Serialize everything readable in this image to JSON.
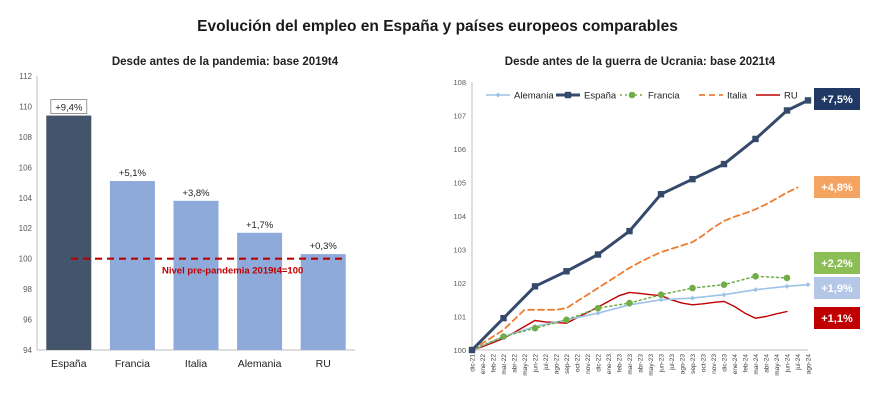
{
  "title": "Evolución del empleo en España y países europeos comparables",
  "colors": {
    "espana": "#44546a",
    "espana_line": "#354a6b",
    "others_bar": "#8eaadb",
    "alemania": "#9dc3e6",
    "francia": "#70ad47",
    "italia": "#ed7d31",
    "ru": "#c00000",
    "refline": "#c00000",
    "grid": "#d9d9d9",
    "axis": "#bfbfbf"
  },
  "chart_data": [
    {
      "type": "bar",
      "title": "Desde antes de la pandemia: base 2019t4",
      "categories": [
        "España",
        "Francia",
        "Italia",
        "Alemania",
        "RU"
      ],
      "values": [
        109.4,
        105.1,
        103.8,
        101.7,
        100.3
      ],
      "data_labels": [
        "+9,4%",
        "+5,1%",
        "+3,8%",
        "+1,7%",
        "+0,3%"
      ],
      "ylim": [
        94,
        112
      ],
      "yticks": [
        94,
        96,
        98,
        100,
        102,
        104,
        106,
        108,
        110,
        112
      ],
      "reference_line": {
        "value": 100,
        "label": "Nivel pre-pandemia 2019t4=100"
      },
      "grid": false
    },
    {
      "type": "line",
      "title": "Desde antes de la guerra de Ucrania: base 2021t4",
      "x": [
        "dic-21",
        "ene-22",
        "feb-22",
        "mar-22",
        "abr-22",
        "may-22",
        "jun-22",
        "jul-22",
        "ago-22",
        "sep-22",
        "oct-22",
        "nov-22",
        "dic-22",
        "ene-23",
        "feb-23",
        "mar-23",
        "abr-23",
        "may-23",
        "jun-23",
        "jul-23",
        "ago-23",
        "sep-23",
        "oct-23",
        "nov-23",
        "dic-23",
        "ene-24",
        "feb-24",
        "mar-24",
        "abr-24",
        "may-24",
        "jun-24",
        "jul-24",
        "ago-24"
      ],
      "ylim": [
        100,
        108
      ],
      "yticks": [
        100,
        101,
        102,
        103,
        104,
        105,
        106,
        107,
        108
      ],
      "legend": "top",
      "grid": false,
      "series": [
        {
          "name": "Alemania",
          "key": "alemania",
          "x": [
            "dic-21",
            "mar-22",
            "jun-22",
            "sep-22",
            "dic-22",
            "mar-23",
            "jun-23",
            "sep-23",
            "dic-23",
            "mar-24",
            "jun-24",
            "ago-24"
          ],
          "values": [
            100.0,
            100.4,
            100.7,
            100.9,
            101.1,
            101.35,
            101.5,
            101.55,
            101.65,
            101.8,
            101.9,
            101.95
          ],
          "end_label": "+1,9%"
        },
        {
          "name": "España",
          "key": "espana",
          "x": [
            "dic-21",
            "mar-22",
            "jun-22",
            "sep-22",
            "dic-22",
            "mar-23",
            "jun-23",
            "sep-23",
            "dic-23",
            "mar-24",
            "jun-24",
            "ago-24"
          ],
          "values": [
            100.0,
            100.95,
            101.9,
            102.35,
            102.85,
            103.55,
            104.65,
            105.1,
            105.55,
            106.3,
            107.15,
            107.45
          ],
          "end_label": "+7,5%"
        },
        {
          "name": "Francia",
          "key": "francia",
          "x": [
            "dic-21",
            "mar-22",
            "jun-22",
            "sep-22",
            "dic-22",
            "mar-23",
            "jun-23",
            "sep-23",
            "dic-23",
            "mar-24",
            "jun-24"
          ],
          "values": [
            100.0,
            100.4,
            100.65,
            100.9,
            101.25,
            101.4,
            101.65,
            101.85,
            101.95,
            102.2,
            102.15
          ],
          "end_label": "+2,2%"
        },
        {
          "name": "Italia",
          "key": "italia",
          "x": [
            "dic-21",
            "ene-22",
            "feb-22",
            "mar-22",
            "abr-22",
            "may-22",
            "jun-22",
            "jul-22",
            "ago-22",
            "sep-22",
            "oct-22",
            "nov-22",
            "dic-22",
            "ene-23",
            "feb-23",
            "mar-23",
            "abr-23",
            "may-23",
            "jun-23",
            "jul-23",
            "ago-23",
            "sep-23",
            "oct-23",
            "nov-23",
            "dic-23",
            "ene-24",
            "feb-24",
            "mar-24",
            "abr-24",
            "may-24",
            "jun-24",
            "jul-24"
          ],
          "values": [
            100.0,
            100.2,
            100.4,
            100.6,
            100.9,
            101.2,
            101.2,
            101.2,
            101.2,
            101.25,
            101.45,
            101.65,
            101.85,
            102.05,
            102.25,
            102.45,
            102.62,
            102.78,
            102.92,
            103.02,
            103.12,
            103.22,
            103.42,
            103.66,
            103.85,
            103.98,
            104.08,
            104.2,
            104.35,
            104.52,
            104.7,
            104.85
          ],
          "end_label": "+4,8%"
        },
        {
          "name": "RU",
          "key": "ru",
          "x": [
            "dic-21",
            "ene-22",
            "feb-22",
            "mar-22",
            "abr-22",
            "may-22",
            "jun-22",
            "jul-22",
            "ago-22",
            "sep-22",
            "oct-22",
            "nov-22",
            "dic-22",
            "ene-23",
            "feb-23",
            "mar-23",
            "abr-23",
            "may-23",
            "jun-23",
            "jul-23",
            "ago-23",
            "sep-23",
            "oct-23",
            "nov-23",
            "dic-23",
            "ene-24",
            "feb-24",
            "mar-24",
            "abr-24",
            "may-24",
            "jun-24"
          ],
          "values": [
            100.0,
            100.1,
            100.22,
            100.35,
            100.52,
            100.7,
            100.88,
            100.84,
            100.82,
            100.8,
            100.96,
            101.12,
            101.28,
            101.45,
            101.62,
            101.72,
            101.69,
            101.65,
            101.62,
            101.5,
            101.4,
            101.35,
            101.38,
            101.42,
            101.45,
            101.3,
            101.1,
            100.95,
            101.0,
            101.08,
            101.15
          ],
          "end_label": "+1,1%"
        }
      ]
    }
  ]
}
